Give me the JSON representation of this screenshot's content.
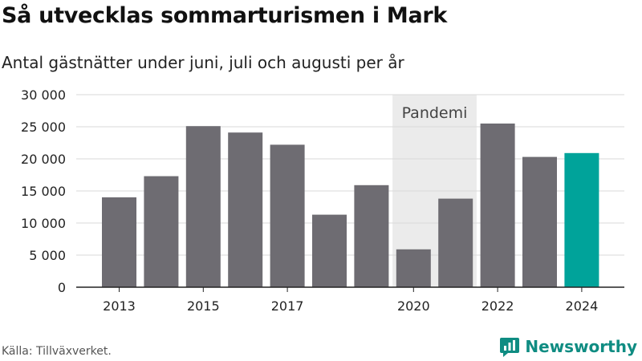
{
  "title": "Så utvecklas sommarturismen i Mark",
  "subtitle": "Antal gästnätter under juni, juli och augusti per år",
  "source": "Källa: Tillväxverket.",
  "brand": {
    "name": "Newsworthy",
    "logo_icon": "newsworthy-chart-logo-icon",
    "color": "#0f8c82"
  },
  "chart_data": {
    "type": "bar",
    "categories": [
      "2013",
      "2014",
      "2015",
      "2016",
      "2017",
      "2018",
      "2019",
      "2020",
      "2021",
      "2022",
      "2023",
      "2024"
    ],
    "values": [
      14000,
      17300,
      25100,
      24100,
      22200,
      11300,
      15900,
      5900,
      13800,
      25500,
      20300,
      20900
    ],
    "x_tick_labels": [
      "2013",
      "",
      "2015",
      "",
      "2017",
      "",
      "",
      "2020",
      "",
      "2022",
      "",
      "2024"
    ],
    "y_ticks": [
      0,
      5000,
      10000,
      15000,
      20000,
      25000,
      30000
    ],
    "y_tick_labels": [
      "0",
      "5 000",
      "10 000",
      "15 000",
      "20 000",
      "25 000",
      "30 000"
    ],
    "ylim": [
      0,
      30000
    ],
    "grid": true,
    "bar_color": "#6e6c72",
    "highlight_color": "#00a39a",
    "highlight_category": "2024",
    "annotation": {
      "label": "Pandemi",
      "from": "2020",
      "to": "2021",
      "color": "#ebebeb"
    }
  }
}
